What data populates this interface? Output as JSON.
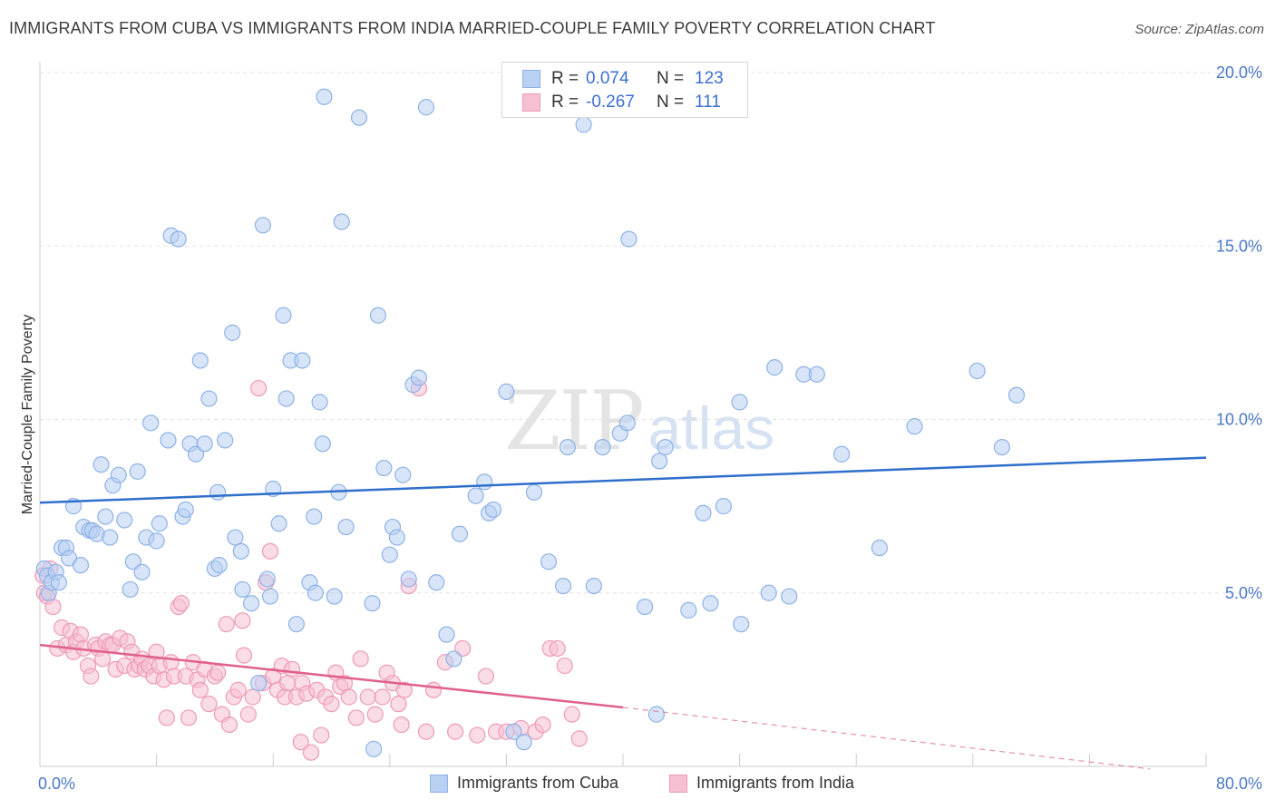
{
  "title": "IMMIGRANTS FROM CUBA VS IMMIGRANTS FROM INDIA MARRIED-COUPLE FAMILY POVERTY CORRELATION CHART",
  "source": "Source: ZipAtlas.com",
  "watermark": {
    "main": "ZIP",
    "sub": "atlas"
  },
  "legend": {
    "rows": [
      {
        "r_label": "R =",
        "r_value": "0.074",
        "n_label": "N =",
        "n_value": "123"
      },
      {
        "r_label": "R =",
        "r_value": "-0.267",
        "n_label": "N =",
        "n_value": "111"
      }
    ]
  },
  "bottom_legend": [
    "Immigrants from Cuba",
    "Immigrants from India"
  ],
  "colors": {
    "cuba_fill": "#b8d0f2",
    "cuba_stroke": "#8eb2e6",
    "cuba_line": "#2f6fcc",
    "india_fill": "#f6c0d2",
    "india_stroke": "#ee9ab8",
    "india_line": "#e0608c",
    "grid": "#e2e2e2",
    "tick_text": "#4a78c8"
  },
  "chart_data": {
    "type": "scatter",
    "title": "IMMIGRANTS FROM CUBA VS IMMIGRANTS FROM INDIA MARRIED-COUPLE FAMILY POVERTY CORRELATION CHART",
    "xlabel": "",
    "ylabel": "Married-Couple Family Poverty",
    "xlim": [
      0,
      80
    ],
    "ylim": [
      0,
      20
    ],
    "x_tick_labels": [
      "0.0%",
      "80.0%"
    ],
    "y_ticks": [
      5,
      10,
      15,
      20
    ],
    "y_tick_labels": [
      "5.0%",
      "10.0%",
      "15.0%",
      "20.0%"
    ],
    "grid": true,
    "legend_position": "top-center",
    "series": [
      {
        "name": "Immigrants from Cuba",
        "r": 0.074,
        "n": 123,
        "trend": {
          "x": [
            0,
            80
          ],
          "y": [
            7.6,
            8.9
          ]
        },
        "points": [
          [
            0.3,
            5.7
          ],
          [
            0.5,
            5.5
          ],
          [
            0.6,
            5.0
          ],
          [
            0.8,
            5.3
          ],
          [
            1.1,
            5.6
          ],
          [
            1.3,
            5.3
          ],
          [
            1.5,
            6.3
          ],
          [
            1.8,
            6.3
          ],
          [
            2.0,
            6.0
          ],
          [
            2.3,
            7.5
          ],
          [
            2.8,
            5.8
          ],
          [
            3.0,
            6.9
          ],
          [
            3.4,
            6.8
          ],
          [
            3.6,
            6.8
          ],
          [
            3.9,
            6.7
          ],
          [
            4.2,
            8.7
          ],
          [
            4.5,
            7.2
          ],
          [
            4.8,
            6.6
          ],
          [
            5.0,
            8.1
          ],
          [
            5.4,
            8.4
          ],
          [
            5.8,
            7.1
          ],
          [
            6.2,
            5.1
          ],
          [
            6.4,
            5.9
          ],
          [
            6.7,
            8.5
          ],
          [
            7.0,
            5.6
          ],
          [
            7.3,
            6.6
          ],
          [
            7.6,
            9.9
          ],
          [
            8.0,
            6.5
          ],
          [
            8.2,
            7.0
          ],
          [
            8.8,
            9.4
          ],
          [
            9.0,
            15.3
          ],
          [
            9.5,
            15.2
          ],
          [
            9.8,
            7.2
          ],
          [
            10.0,
            7.4
          ],
          [
            10.3,
            9.3
          ],
          [
            10.7,
            9.0
          ],
          [
            11.0,
            11.7
          ],
          [
            11.3,
            9.3
          ],
          [
            11.6,
            10.6
          ],
          [
            12.0,
            5.7
          ],
          [
            12.2,
            7.9
          ],
          [
            12.3,
            5.8
          ],
          [
            12.7,
            9.4
          ],
          [
            13.2,
            12.5
          ],
          [
            13.4,
            6.6
          ],
          [
            13.8,
            6.2
          ],
          [
            13.9,
            5.1
          ],
          [
            14.5,
            4.7
          ],
          [
            15.0,
            2.4
          ],
          [
            15.3,
            15.6
          ],
          [
            15.6,
            5.4
          ],
          [
            15.8,
            4.9
          ],
          [
            16.0,
            8.0
          ],
          [
            16.4,
            7.0
          ],
          [
            16.7,
            13.0
          ],
          [
            16.9,
            10.6
          ],
          [
            17.2,
            11.7
          ],
          [
            17.6,
            4.1
          ],
          [
            18.0,
            11.7
          ],
          [
            18.5,
            5.3
          ],
          [
            18.8,
            7.2
          ],
          [
            18.9,
            5.0
          ],
          [
            19.2,
            10.5
          ],
          [
            19.4,
            9.3
          ],
          [
            19.5,
            19.3
          ],
          [
            20.2,
            4.9
          ],
          [
            20.5,
            7.9
          ],
          [
            20.7,
            15.7
          ],
          [
            21.0,
            6.9
          ],
          [
            21.9,
            18.7
          ],
          [
            22.8,
            4.7
          ],
          [
            22.9,
            0.5
          ],
          [
            23.2,
            13.0
          ],
          [
            23.6,
            8.6
          ],
          [
            24.0,
            6.1
          ],
          [
            24.2,
            6.9
          ],
          [
            24.5,
            6.6
          ],
          [
            24.9,
            8.4
          ],
          [
            25.3,
            5.4
          ],
          [
            25.6,
            11.0
          ],
          [
            26.0,
            11.2
          ],
          [
            26.5,
            19.0
          ],
          [
            27.2,
            5.3
          ],
          [
            27.9,
            3.8
          ],
          [
            28.4,
            3.1
          ],
          [
            28.8,
            6.7
          ],
          [
            29.9,
            7.8
          ],
          [
            30.5,
            8.2
          ],
          [
            30.8,
            7.3
          ],
          [
            31.1,
            7.4
          ],
          [
            32.0,
            10.8
          ],
          [
            32.5,
            1.0
          ],
          [
            33.2,
            0.7
          ],
          [
            33.9,
            7.9
          ],
          [
            34.9,
            5.9
          ],
          [
            35.9,
            5.2
          ],
          [
            36.2,
            9.2
          ],
          [
            37.3,
            18.5
          ],
          [
            38.0,
            5.2
          ],
          [
            38.6,
            9.2
          ],
          [
            39.8,
            9.6
          ],
          [
            40.3,
            9.9
          ],
          [
            40.4,
            15.2
          ],
          [
            41.5,
            4.6
          ],
          [
            42.3,
            1.5
          ],
          [
            42.5,
            8.8
          ],
          [
            42.9,
            9.2
          ],
          [
            44.5,
            4.5
          ],
          [
            45.5,
            7.3
          ],
          [
            46.0,
            4.7
          ],
          [
            46.9,
            7.5
          ],
          [
            48.0,
            10.5
          ],
          [
            48.1,
            4.1
          ],
          [
            50.0,
            5.0
          ],
          [
            50.4,
            11.5
          ],
          [
            51.4,
            4.9
          ],
          [
            52.4,
            11.3
          ],
          [
            53.3,
            11.3
          ],
          [
            55.0,
            9.0
          ],
          [
            57.6,
            6.3
          ],
          [
            60.0,
            9.8
          ],
          [
            64.3,
            11.4
          ],
          [
            66.0,
            9.2
          ],
          [
            67.0,
            10.7
          ]
        ]
      },
      {
        "name": "Immigrants from India",
        "r": -0.267,
        "n": 111,
        "trend": {
          "x": [
            0,
            40
          ],
          "y": [
            3.5,
            1.7
          ]
        },
        "trend_dashed": {
          "x": [
            40,
            80
          ],
          "y": [
            1.7,
            -0.1
          ]
        },
        "points": [
          [
            0.2,
            5.5
          ],
          [
            0.3,
            5.0
          ],
          [
            0.5,
            4.9
          ],
          [
            0.7,
            5.7
          ],
          [
            0.9,
            4.6
          ],
          [
            1.2,
            3.4
          ],
          [
            1.5,
            4.0
          ],
          [
            1.8,
            3.5
          ],
          [
            2.1,
            3.9
          ],
          [
            2.3,
            3.3
          ],
          [
            2.5,
            3.6
          ],
          [
            2.8,
            3.8
          ],
          [
            3.0,
            3.4
          ],
          [
            3.3,
            2.9
          ],
          [
            3.5,
            2.6
          ],
          [
            3.8,
            3.5
          ],
          [
            4.0,
            3.4
          ],
          [
            4.3,
            3.1
          ],
          [
            4.5,
            3.6
          ],
          [
            4.8,
            3.5
          ],
          [
            5.0,
            3.5
          ],
          [
            5.2,
            2.8
          ],
          [
            5.5,
            3.7
          ],
          [
            5.8,
            2.9
          ],
          [
            6.0,
            3.6
          ],
          [
            6.3,
            3.3
          ],
          [
            6.5,
            2.8
          ],
          [
            6.8,
            2.9
          ],
          [
            7.0,
            3.1
          ],
          [
            7.2,
            2.8
          ],
          [
            7.5,
            2.9
          ],
          [
            7.8,
            2.6
          ],
          [
            8.0,
            3.3
          ],
          [
            8.2,
            2.9
          ],
          [
            8.5,
            2.5
          ],
          [
            8.7,
            1.4
          ],
          [
            9.0,
            3.0
          ],
          [
            9.2,
            2.6
          ],
          [
            9.5,
            4.6
          ],
          [
            9.7,
            4.7
          ],
          [
            10.0,
            2.6
          ],
          [
            10.2,
            1.4
          ],
          [
            10.5,
            3.0
          ],
          [
            10.8,
            2.5
          ],
          [
            11.0,
            2.2
          ],
          [
            11.3,
            2.8
          ],
          [
            11.6,
            1.8
          ],
          [
            12.0,
            2.6
          ],
          [
            12.2,
            2.7
          ],
          [
            12.5,
            1.5
          ],
          [
            12.8,
            4.1
          ],
          [
            13.0,
            1.2
          ],
          [
            13.3,
            2.0
          ],
          [
            13.6,
            2.2
          ],
          [
            13.9,
            4.2
          ],
          [
            14.0,
            3.2
          ],
          [
            14.3,
            1.5
          ],
          [
            14.6,
            2.0
          ],
          [
            15.0,
            10.9
          ],
          [
            15.3,
            2.4
          ],
          [
            15.5,
            5.3
          ],
          [
            15.8,
            6.2
          ],
          [
            16.0,
            2.6
          ],
          [
            16.3,
            2.2
          ],
          [
            16.6,
            2.9
          ],
          [
            16.8,
            2.0
          ],
          [
            17.0,
            2.4
          ],
          [
            17.3,
            2.8
          ],
          [
            17.6,
            2.0
          ],
          [
            18.0,
            2.4
          ],
          [
            18.3,
            2.1
          ],
          [
            18.6,
            0.4
          ],
          [
            19.0,
            2.2
          ],
          [
            19.3,
            0.9
          ],
          [
            19.6,
            2.0
          ],
          [
            20.0,
            1.8
          ],
          [
            20.3,
            2.7
          ],
          [
            20.6,
            2.3
          ],
          [
            20.9,
            2.4
          ],
          [
            21.2,
            2.0
          ],
          [
            22.0,
            3.1
          ],
          [
            22.5,
            2.0
          ],
          [
            23.0,
            1.5
          ],
          [
            23.5,
            2.0
          ],
          [
            23.8,
            2.7
          ],
          [
            24.2,
            2.4
          ],
          [
            24.6,
            1.8
          ],
          [
            25.0,
            2.2
          ],
          [
            25.3,
            5.2
          ],
          [
            26.0,
            10.9
          ],
          [
            26.5,
            1.0
          ],
          [
            27.0,
            2.2
          ],
          [
            27.8,
            3.0
          ],
          [
            28.5,
            1.0
          ],
          [
            29.0,
            3.4
          ],
          [
            30.0,
            0.9
          ],
          [
            30.6,
            2.6
          ],
          [
            31.3,
            1.0
          ],
          [
            32.0,
            1.0
          ],
          [
            33.0,
            1.1
          ],
          [
            34.0,
            1.0
          ],
          [
            34.5,
            1.2
          ],
          [
            35.0,
            3.4
          ],
          [
            35.5,
            3.4
          ],
          [
            36.0,
            2.9
          ],
          [
            36.5,
            1.5
          ],
          [
            37.0,
            0.8
          ],
          [
            24.8,
            1.2
          ],
          [
            21.7,
            1.4
          ],
          [
            17.9,
            0.7
          ]
        ]
      }
    ]
  }
}
